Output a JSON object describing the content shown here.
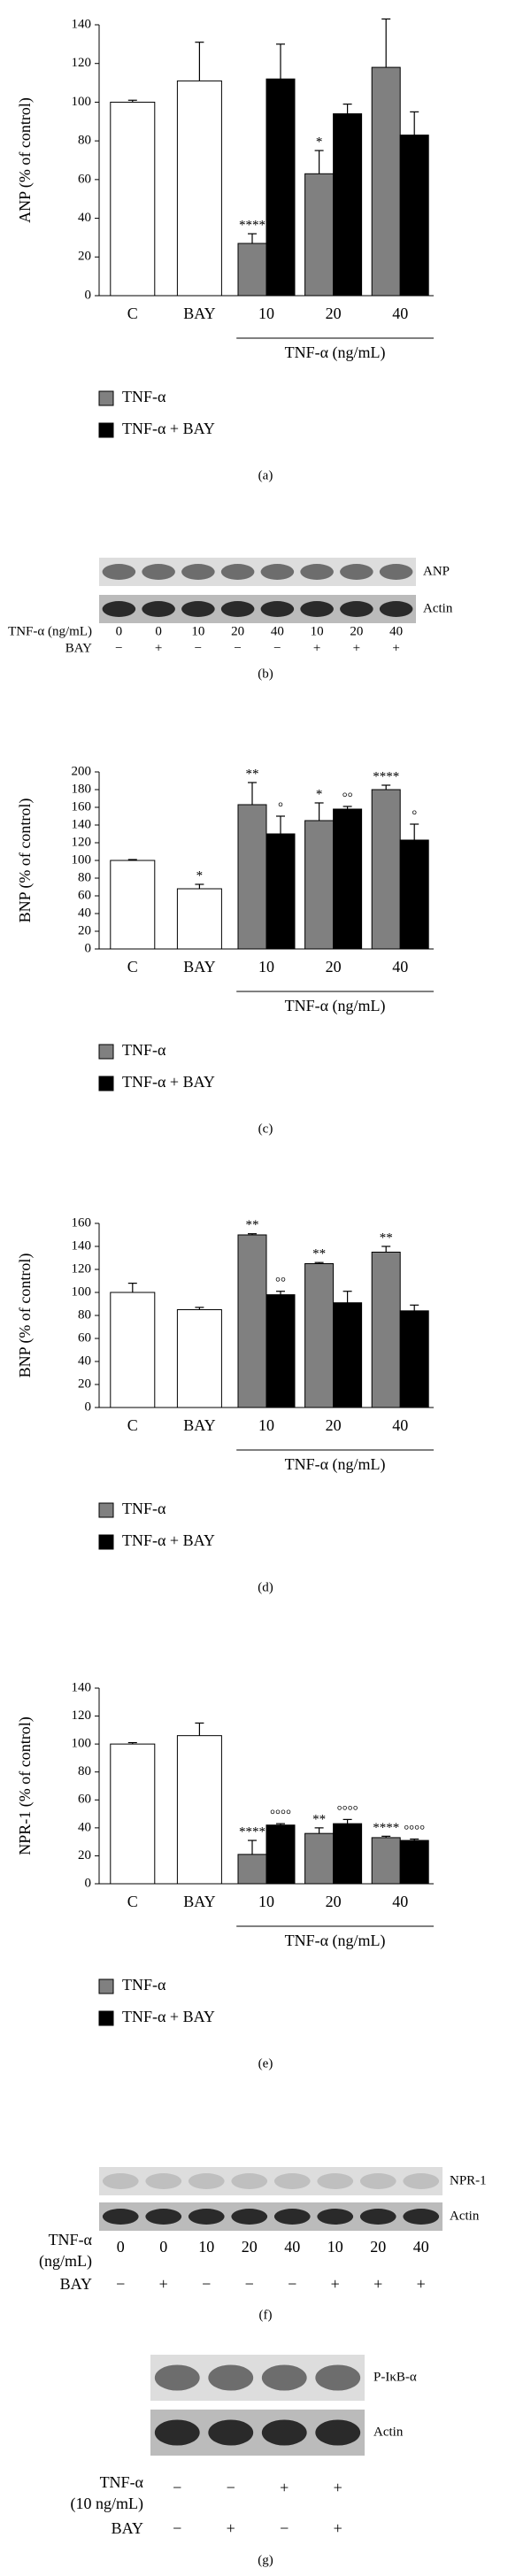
{
  "chart_data": [
    {
      "type": "bar",
      "panel_label": "(a)",
      "y_label": "ANP (% of control)",
      "x_label": "TNF-α (ng/mL)",
      "categories": [
        "C",
        "BAY",
        "10",
        "20",
        "40"
      ],
      "ylim": [
        0,
        140
      ],
      "yticks": [
        0,
        20,
        40,
        60,
        80,
        100,
        120,
        140
      ],
      "series": [
        {
          "color": "#ffffff",
          "values": [
            100,
            111,
            null,
            null,
            null
          ],
          "errors": [
            1,
            20,
            null,
            null,
            null
          ]
        },
        {
          "name": "TNF-α",
          "color": "#808080",
          "values": [
            null,
            null,
            27,
            63,
            118
          ],
          "errors": [
            null,
            null,
            5,
            12,
            25
          ],
          "significance": [
            null,
            null,
            "****",
            "*",
            null
          ]
        },
        {
          "name": "TNF-α + BAY",
          "color": "#000000",
          "values": [
            null,
            null,
            112,
            94,
            83
          ],
          "errors": [
            null,
            null,
            18,
            5,
            12
          ]
        }
      ]
    },
    {
      "type": "bar",
      "panel_label": "(c)",
      "y_label": "BNP (% of control)",
      "x_label": "TNF-α (ng/mL)",
      "categories": [
        "C",
        "BAY",
        "10",
        "20",
        "40"
      ],
      "ylim": [
        0,
        200
      ],
      "yticks": [
        0,
        20,
        40,
        60,
        80,
        100,
        120,
        140,
        160,
        180,
        200
      ],
      "series": [
        {
          "color": "#ffffff",
          "values": [
            100,
            68,
            null,
            null,
            null
          ],
          "errors": [
            1,
            5,
            null,
            null,
            null
          ],
          "significance": [
            null,
            "*",
            null,
            null,
            null
          ]
        },
        {
          "name": "TNF-α",
          "color": "#808080",
          "values": [
            null,
            null,
            163,
            145,
            180
          ],
          "errors": [
            null,
            null,
            25,
            20,
            5
          ],
          "significance": [
            null,
            null,
            "**",
            "*",
            "****"
          ]
        },
        {
          "name": "TNF-α + BAY",
          "color": "#000000",
          "values": [
            null,
            null,
            130,
            158,
            123
          ],
          "errors": [
            null,
            null,
            20,
            3,
            18
          ],
          "significance": [
            null,
            null,
            "°",
            "°°",
            "°"
          ]
        }
      ]
    },
    {
      "type": "bar",
      "panel_label": "(d)",
      "y_label": "BNP (% of control)",
      "x_label": "TNF-α (ng/mL)",
      "categories": [
        "C",
        "BAY",
        "10",
        "20",
        "40"
      ],
      "ylim": [
        0,
        160
      ],
      "yticks": [
        0,
        20,
        40,
        60,
        80,
        100,
        120,
        140,
        160
      ],
      "series": [
        {
          "color": "#ffffff",
          "values": [
            100,
            85,
            null,
            null,
            null
          ],
          "errors": [
            8,
            2,
            null,
            null,
            null
          ]
        },
        {
          "name": "TNF-α",
          "color": "#808080",
          "values": [
            null,
            null,
            150,
            125,
            135
          ],
          "errors": [
            null,
            null,
            1,
            1,
            5
          ],
          "significance": [
            null,
            null,
            "**",
            "**",
            "**"
          ]
        },
        {
          "name": "TNF-α + BAY",
          "color": "#000000",
          "values": [
            null,
            null,
            98,
            91,
            84
          ],
          "errors": [
            null,
            null,
            3,
            10,
            5
          ],
          "significance": [
            null,
            null,
            "°°",
            null,
            null
          ]
        }
      ]
    },
    {
      "type": "bar",
      "panel_label": "(e)",
      "y_label": "NPR-1 (% of control)",
      "x_label": "TNF-α (ng/mL)",
      "categories": [
        "C",
        "BAY",
        "10",
        "20",
        "40"
      ],
      "ylim": [
        0,
        140
      ],
      "yticks": [
        0,
        20,
        40,
        60,
        80,
        100,
        120,
        140
      ],
      "series": [
        {
          "color": "#ffffff",
          "values": [
            100,
            106,
            null,
            null,
            null
          ],
          "errors": [
            1,
            9,
            null,
            null,
            null
          ]
        },
        {
          "name": "TNF-α",
          "color": "#808080",
          "values": [
            null,
            null,
            21,
            36,
            33
          ],
          "errors": [
            null,
            null,
            10,
            4,
            1
          ],
          "significance": [
            null,
            null,
            "****",
            "**",
            "****"
          ]
        },
        {
          "name": "TNF-α + BAY",
          "color": "#000000",
          "values": [
            null,
            null,
            42,
            43,
            31
          ],
          "errors": [
            null,
            null,
            1,
            3,
            1
          ],
          "significance": [
            null,
            null,
            "°°°°",
            "°°°°",
            "°°°°"
          ]
        }
      ]
    }
  ],
  "blots": [
    {
      "panel_label": "(b)",
      "bands": [
        "ANP",
        "Actin"
      ],
      "rows": [
        {
          "label": [
            "TNF-α (ng/mL)"
          ],
          "values": [
            "0",
            "0",
            "10",
            "20",
            "40",
            "10",
            "20",
            "40"
          ]
        },
        {
          "label": [
            "BAY"
          ],
          "values": [
            "−",
            "+",
            "−",
            "−",
            "−",
            "+",
            "+",
            "+"
          ]
        }
      ]
    },
    {
      "panel_label": "(f)",
      "bands": [
        "NPR-1",
        "Actin"
      ],
      "rows": [
        {
          "label": [
            "TNF-α",
            "(ng/mL)"
          ],
          "values": [
            "0",
            "0",
            "10",
            "20",
            "40",
            "10",
            "20",
            "40"
          ]
        },
        {
          "label": [
            "BAY"
          ],
          "values": [
            "−",
            "+",
            "−",
            "−",
            "−",
            "+",
            "+",
            "+"
          ]
        }
      ]
    },
    {
      "panel_label": "(g)",
      "bands": [
        "P-IκB-α",
        "Actin"
      ],
      "rows": [
        {
          "label": [
            "TNF-α",
            "(10 ng/mL)"
          ],
          "values": [
            "−",
            "−",
            "+",
            "+"
          ]
        },
        {
          "label": [
            "BAY"
          ],
          "values": [
            "−",
            "+",
            "−",
            "+"
          ]
        }
      ]
    }
  ]
}
